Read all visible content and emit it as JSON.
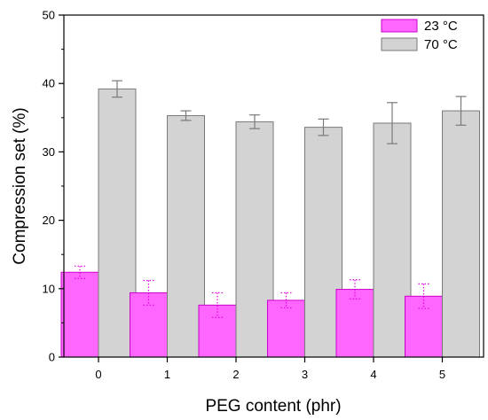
{
  "chart_data": {
    "type": "bar",
    "categories": [
      "0",
      "1",
      "2",
      "3",
      "4",
      "5"
    ],
    "series": [
      {
        "name": "23 °C",
        "values": [
          12.4,
          9.4,
          7.6,
          8.3,
          9.9,
          8.9
        ],
        "errors": [
          0.9,
          1.8,
          1.8,
          1.1,
          1.4,
          1.8
        ],
        "color": "#ff66ff",
        "stroke": "#cc00cc",
        "error_color": "#e000e0",
        "error_style": "dotted"
      },
      {
        "name": "70 °C",
        "values": [
          39.2,
          35.3,
          34.4,
          33.6,
          34.2,
          36.0
        ],
        "errors": [
          1.2,
          0.7,
          1.0,
          1.2,
          3.0,
          2.1
        ],
        "color": "#d3d3d3",
        "stroke": "#7a7a7a",
        "error_color": "#7a7a7a",
        "error_style": "solid"
      }
    ],
    "xlabel": "PEG content (phr)",
    "ylabel": "Compression set (%)",
    "ylim": [
      0,
      50
    ],
    "yticks": [
      "0",
      "10",
      "20",
      "30",
      "40",
      "50"
    ],
    "grid": false,
    "legend_position": "top-right"
  }
}
